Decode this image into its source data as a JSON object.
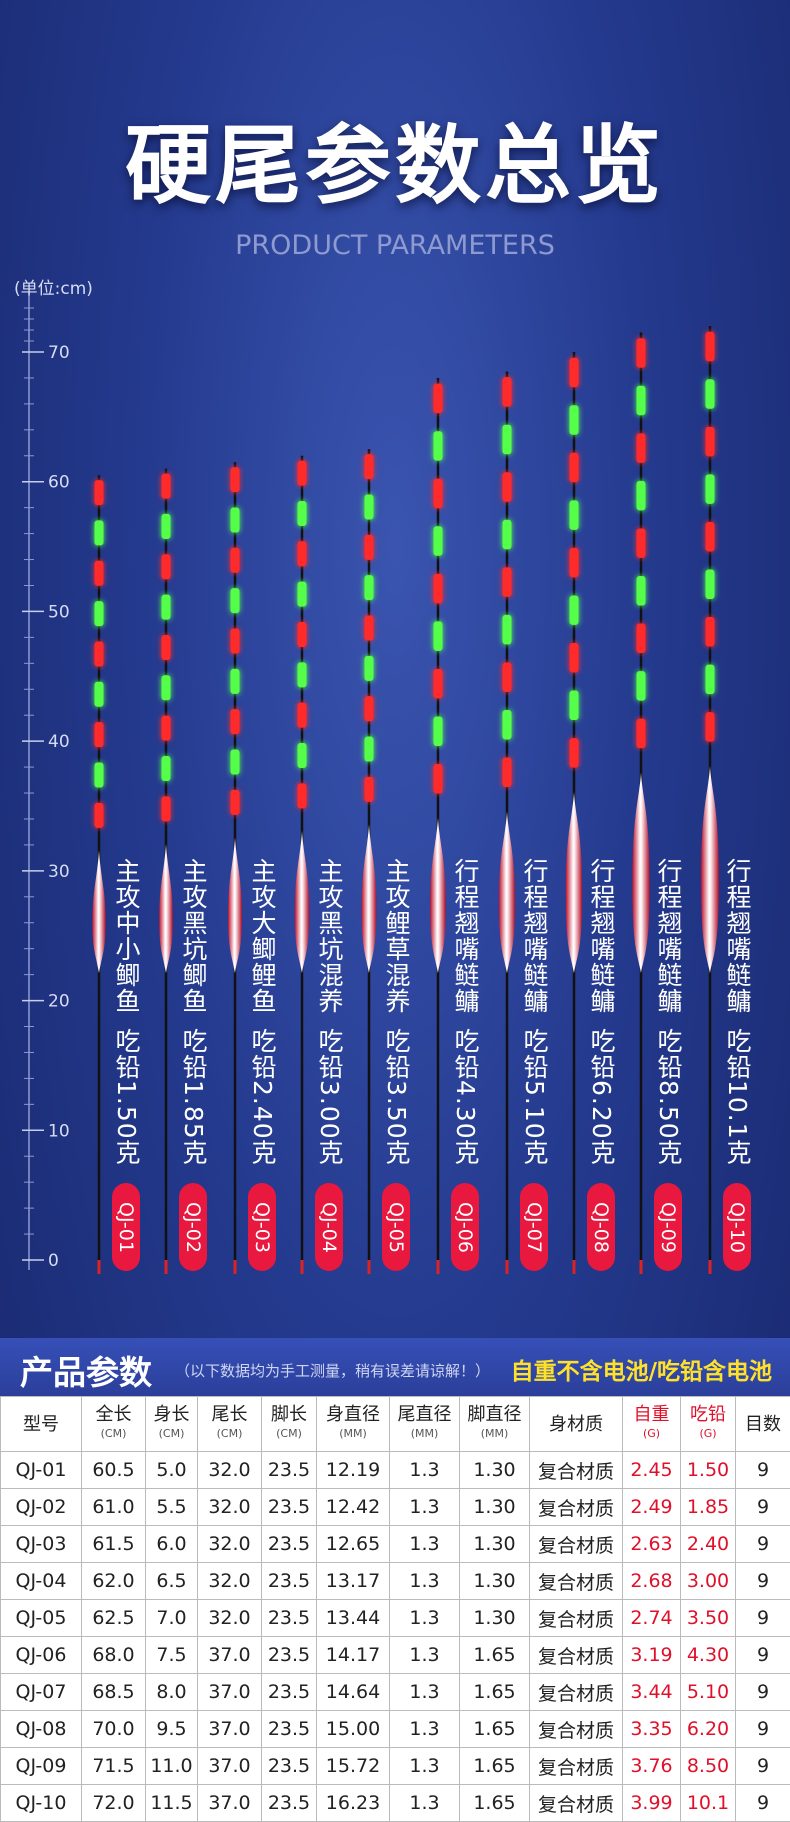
{
  "header": {
    "title": "硬尾参数总览",
    "subtitle": "PRODUCT PARAMETERS"
  },
  "ruler": {
    "unit": "(单位:cm)",
    "ticks": [
      0,
      10,
      20,
      30,
      40,
      50,
      60,
      70
    ]
  },
  "floats": [
    {
      "target": "主攻中小鲫鱼",
      "lead": "吃铅1.50克",
      "code": "QJ-01"
    },
    {
      "target": "主攻黑坑鲫鱼",
      "lead": "吃铅1.85克",
      "code": "QJ-02"
    },
    {
      "target": "主攻大鲫鲤鱼",
      "lead": "吃铅2.40克",
      "code": "QJ-03"
    },
    {
      "target": "主攻黑坑混养",
      "lead": "吃铅3.00克",
      "code": "QJ-04"
    },
    {
      "target": "主攻鲤草混养",
      "lead": "吃铅3.50克",
      "code": "QJ-05"
    },
    {
      "target": "行程翘嘴鲢鳙",
      "lead": "吃铅4.30克",
      "code": "QJ-06"
    },
    {
      "target": "行程翘嘴鲢鳙",
      "lead": "吃铅5.10克",
      "code": "QJ-07"
    },
    {
      "target": "行程翘嘴鲢鳙",
      "lead": "吃铅6.20克",
      "code": "QJ-08"
    },
    {
      "target": "行程翘嘴鲢鳙",
      "lead": "吃铅8.50克",
      "code": "QJ-09"
    },
    {
      "target": "行程翘嘴鲢鳙",
      "lead": "吃铅10.1克",
      "code": "QJ-10"
    }
  ],
  "table": {
    "title": "产品参数",
    "note": "（以下数据均为手工测量，稍有误差请谅解！）",
    "highlight": "自重不含电池/吃铅含电池",
    "columns": [
      {
        "label": "型号"
      },
      {
        "label": "全长",
        "unit": "(CM)"
      },
      {
        "label": "身长",
        "unit": "(CM)"
      },
      {
        "label": "尾长",
        "unit": "(CM)"
      },
      {
        "label": "脚长",
        "unit": "(CM)"
      },
      {
        "label": "身直径",
        "unit": "(MM)"
      },
      {
        "label": "尾直径",
        "unit": "(MM)"
      },
      {
        "label": "脚直径",
        "unit": "(MM)"
      },
      {
        "label": "身材质"
      },
      {
        "label": "自重",
        "unit": "(G)"
      },
      {
        "label": "吃铅",
        "unit": "(G)"
      },
      {
        "label": "目数"
      }
    ],
    "rows": [
      [
        "QJ-01",
        "60.5",
        "5.0",
        "32.0",
        "23.5",
        "12.19",
        "1.3",
        "1.30",
        "复合材质",
        "2.45",
        "1.50",
        "9"
      ],
      [
        "QJ-02",
        "61.0",
        "5.5",
        "32.0",
        "23.5",
        "12.42",
        "1.3",
        "1.30",
        "复合材质",
        "2.49",
        "1.85",
        "9"
      ],
      [
        "QJ-03",
        "61.5",
        "6.0",
        "32.0",
        "23.5",
        "12.65",
        "1.3",
        "1.30",
        "复合材质",
        "2.63",
        "2.40",
        "9"
      ],
      [
        "QJ-04",
        "62.0",
        "6.5",
        "32.0",
        "23.5",
        "13.17",
        "1.3",
        "1.30",
        "复合材质",
        "2.68",
        "3.00",
        "9"
      ],
      [
        "QJ-05",
        "62.5",
        "7.0",
        "32.0",
        "23.5",
        "13.44",
        "1.3",
        "1.30",
        "复合材质",
        "2.74",
        "3.50",
        "9"
      ],
      [
        "QJ-06",
        "68.0",
        "7.5",
        "37.0",
        "23.5",
        "14.17",
        "1.3",
        "1.65",
        "复合材质",
        "3.19",
        "4.30",
        "9"
      ],
      [
        "QJ-07",
        "68.5",
        "8.0",
        "37.0",
        "23.5",
        "14.64",
        "1.3",
        "1.65",
        "复合材质",
        "3.44",
        "5.10",
        "9"
      ],
      [
        "QJ-08",
        "70.0",
        "9.5",
        "37.0",
        "23.5",
        "15.00",
        "1.3",
        "1.65",
        "复合材质",
        "3.35",
        "6.20",
        "9"
      ],
      [
        "QJ-09",
        "71.5",
        "11.0",
        "37.0",
        "23.5",
        "15.72",
        "1.3",
        "1.65",
        "复合材质",
        "3.76",
        "8.50",
        "9"
      ],
      [
        "QJ-10",
        "72.0",
        "11.5",
        "37.0",
        "23.5",
        "16.23",
        "1.3",
        "1.65",
        "复合材质",
        "3.99",
        "10.1",
        "9"
      ]
    ]
  }
}
